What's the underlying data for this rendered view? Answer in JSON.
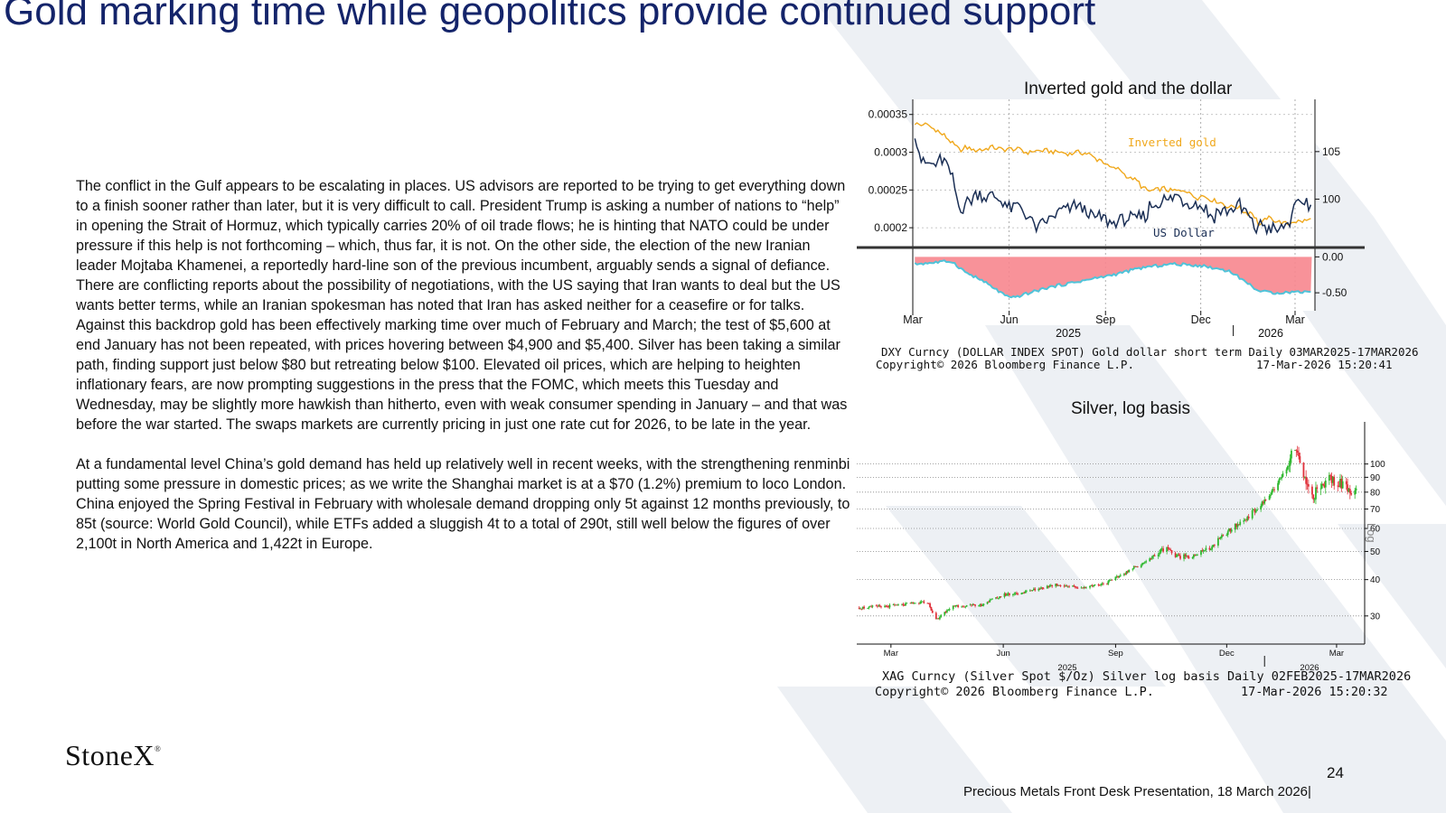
{
  "slide": {
    "title": "Gold marking time while geopolitics provide continued support",
    "page_number": "24",
    "footer": "Precious Metals Front Desk Presentation, 18 March 2026|",
    "logo": "StoneX",
    "logo_mark": "®"
  },
  "body": {
    "paragraphs": [
      "The conflict in the Gulf appears to be escalating in places.  US advisors are reported to be trying to get everything down to a finish sooner rather than later, but it is very difficult to call.  President Trump is asking a number of nations to “help” in opening the Strait of Hormuz, which typically carries 20% of oil trade flows; he is hinting that NATO could be under pressure if this help is not forthcoming – which, thus far, it is not.  On the other side, the election of the new Iranian leader Mojtaba Khamenei, a reportedly hard-line son of the previous incumbent, arguably sends a signal of defiance.  There are conflicting reports about the possibility of negotiations, with the US saying that Iran wants to deal but the US wants better terms, while an Iranian spokesman has noted that Iran has asked neither for a ceasefire or for talks.",
      "Against this backdrop gold has been effectively marking time over much of February and March; the test of $5,600 at end January has not been repeated, with prices hovering between $4,900 and $5,400.  Silver has been taking a similar path, finding support just below $80 but retreating below $100.  Elevated oil prices, which are helping to heighten inflationary fears, are now prompting suggestions in the press that the FOMC, which meets this Tuesday and Wednesday, may be slightly more hawkish than hitherto, even with weak consumer spending in January – and that was before the war started.  The swaps markets are currently pricing in just one rate cut for 2026, to be late in the year.",
      "At a fundamental level China’s gold demand has held up relatively well in recent weeks, with the strengthening renminbi putting some pressure in domestic prices; as we write the Shanghai market is at a $70 (1.2%) premium to loco London.  China enjoyed the Spring Festival in February with wholesale demand dropping only 5t against 12 months previously, to 85t (source: World Gold Council), while ETFs added a sluggish 4t to a total of 290t, still well below the figures of over 2,100t in North America and 1,422t in Europe."
    ]
  },
  "chart_data": [
    {
      "type": "line",
      "title": "Inverted gold and the dollar",
      "footer_line1": "DXY Curncy (DOLLAR INDEX SPOT) Gold dollar short term Daily 03MAR2025-17MAR2026",
      "footer_line2_left": "Copyright© 2026 Bloomberg Finance L.P.",
      "footer_line2_right": "17-Mar-2026 15:20:41",
      "x_labels": [
        "Mar",
        "Jun",
        "Sep",
        "Dec",
        "Mar"
      ],
      "x_years": [
        "2025",
        "2026"
      ],
      "left_axis": {
        "ticks": [
          "0.00035",
          "0.0003",
          "0.00025",
          "0.0002"
        ],
        "ylim": [
          0.000175,
          0.00037
        ]
      },
      "right_axis": {
        "ticks": [
          "105",
          "100"
        ],
        "ylim": [
          95,
          110.5
        ]
      },
      "colors": {
        "gold": "#f0a81c",
        "dollar": "#1b2f55",
        "spread_fill": "#f7868e",
        "spread_line": "#4fc3d9"
      },
      "series": [
        {
          "name": "Inverted gold",
          "axis": "left",
          "x": [
            "2025-03-03",
            "2025-03-17",
            "2025-03-31",
            "2025-04-14",
            "2025-04-28",
            "2025-05-12",
            "2025-05-26",
            "2025-06-09",
            "2025-06-23",
            "2025-07-07",
            "2025-07-21",
            "2025-08-04",
            "2025-08-18",
            "2025-09-01",
            "2025-09-15",
            "2025-09-29",
            "2025-10-13",
            "2025-10-27",
            "2025-11-10",
            "2025-11-24",
            "2025-12-08",
            "2025-12-22",
            "2026-01-05",
            "2026-01-19",
            "2026-01-26",
            "2026-02-02",
            "2026-02-16",
            "2026-03-02",
            "2026-03-17"
          ],
          "y": [
            0.00034,
            0.000333,
            0.000325,
            0.000305,
            0.000302,
            0.000308,
            0.000303,
            0.000303,
            0.000302,
            0.000303,
            0.0003,
            0.000298,
            0.000296,
            0.000283,
            0.000275,
            0.000261,
            0.000248,
            0.000252,
            0.000249,
            0.000244,
            0.000238,
            0.000231,
            0.000227,
            0.000218,
            0.000203,
            0.000213,
            0.000208,
            0.000206,
            0.00021
          ]
        },
        {
          "name": "US Dollar",
          "axis": "right",
          "x": [
            "2025-03-03",
            "2025-03-10",
            "2025-03-24",
            "2025-04-07",
            "2025-04-14",
            "2025-04-21",
            "2025-05-05",
            "2025-05-19",
            "2025-06-02",
            "2025-06-16",
            "2025-06-30",
            "2025-07-14",
            "2025-07-28",
            "2025-08-11",
            "2025-08-25",
            "2025-09-08",
            "2025-09-22",
            "2025-10-06",
            "2025-10-20",
            "2025-11-03",
            "2025-11-17",
            "2025-12-01",
            "2025-12-15",
            "2025-12-29",
            "2026-01-12",
            "2026-01-26",
            "2026-02-09",
            "2026-02-23",
            "2026-03-09",
            "2026-03-17"
          ],
          "y": [
            107.6,
            104.2,
            104.1,
            103.0,
            99.6,
            99.4,
            100.2,
            99.6,
            99.0,
            98.5,
            96.9,
            98.2,
            99.6,
            98.3,
            97.8,
            97.3,
            97.5,
            98.6,
            98.9,
            99.9,
            99.6,
            99.1,
            98.4,
            98.3,
            99.2,
            96.8,
            97.0,
            97.8,
            99.5,
            99.7
          ]
        }
      ],
      "spread_panel": {
        "ticks": [
          "0.00",
          "-0.50"
        ],
        "ylim": [
          -0.75,
          0.08
        ],
        "x": [
          "2025-03-03",
          "2025-04-07",
          "2025-04-21",
          "2025-05-05",
          "2025-06-02",
          "2025-07-07",
          "2025-08-04",
          "2025-09-08",
          "2025-10-06",
          "2025-11-03",
          "2025-12-01",
          "2025-12-29",
          "2026-01-26",
          "2026-02-09",
          "2026-03-17"
        ],
        "y": [
          -0.1,
          -0.06,
          -0.22,
          -0.32,
          -0.58,
          -0.43,
          -0.35,
          -0.25,
          -0.15,
          -0.1,
          -0.12,
          -0.2,
          -0.48,
          -0.5,
          -0.48
        ]
      }
    },
    {
      "type": "candlestick",
      "title": "Silver, log basis",
      "ylabel": "Log",
      "scale": "log",
      "footer_line1": "XAG Curncy (Silver Spot  $/Oz) Silver log basis Daily 02FEB2025-17MAR2026",
      "footer_line2_left": "Copyright© 2026 Bloomberg Finance L.P.",
      "footer_line2_right": "17-Mar-2026 15:20:32",
      "x_labels": [
        "Mar",
        "Jun",
        "Sep",
        "Dec",
        "Mar"
      ],
      "x_years": [
        "2025",
        "2026"
      ],
      "y_ticks": [
        100,
        90,
        80,
        70,
        60,
        50,
        40,
        30
      ],
      "ylim": [
        24,
        130
      ],
      "colors": {
        "up": "#2eb82e",
        "down": "#e0303a"
      },
      "x": [
        "2025-02-03",
        "2025-03-03",
        "2025-03-31",
        "2025-04-07",
        "2025-04-21",
        "2025-05-12",
        "2025-06-02",
        "2025-06-16",
        "2025-07-14",
        "2025-08-04",
        "2025-08-25",
        "2025-09-08",
        "2025-09-29",
        "2025-10-13",
        "2025-10-20",
        "2025-11-03",
        "2025-11-17",
        "2025-12-01",
        "2025-12-15",
        "2025-12-29",
        "2026-01-05",
        "2026-01-12",
        "2026-01-19",
        "2026-01-26",
        "2026-02-02",
        "2026-02-09",
        "2026-02-16",
        "2026-02-23",
        "2026-03-02",
        "2026-03-09",
        "2026-03-17"
      ],
      "y": [
        32,
        32.5,
        33.5,
        29,
        32.5,
        32.5,
        35.5,
        36,
        38.5,
        37.5,
        39,
        42,
        47,
        52,
        48,
        48.5,
        51,
        58,
        64,
        72,
        78,
        86,
        95,
        115,
        88,
        78,
        82,
        90,
        86,
        84,
        80
      ]
    }
  ]
}
